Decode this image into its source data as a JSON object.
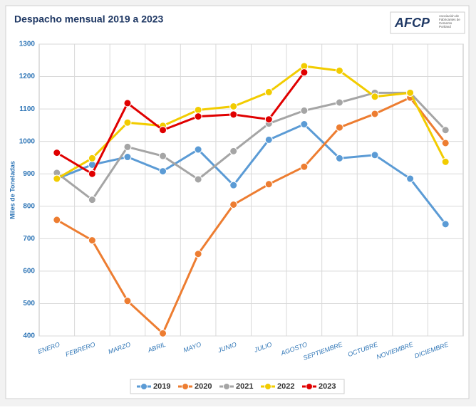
{
  "chart_data": {
    "type": "line",
    "title": "Despacho mensual 2019 a 2023",
    "logo": "AFCP",
    "logo_subtitle": "Asociación de Fabricantes de Cemento Portland",
    "y_label": "Miles de Toneladas",
    "categories": [
      "ENERO",
      "FEBRERO",
      "MARZO",
      "ABRIL",
      "MAYO",
      "JUNIO",
      "JULIO",
      "AGOSTO",
      "SEPTIEMBRE",
      "OCTUBRE",
      "NOVIEMBRE",
      "DICIEMBRE"
    ],
    "series": [
      {
        "name": "2019",
        "color": "#5b9bd5",
        "values": [
          885,
          928,
          952,
          908,
          975,
          865,
          1005,
          1053,
          948,
          958,
          885,
          745
        ]
      },
      {
        "name": "2020",
        "color": "#ed7d31",
        "values": [
          758,
          695,
          508,
          408,
          653,
          805,
          868,
          922,
          1043,
          1085,
          1135,
          995
        ]
      },
      {
        "name": "2021",
        "color": "#a5a5a5",
        "values": [
          903,
          820,
          983,
          955,
          883,
          970,
          1055,
          1095,
          1120,
          1150,
          1150,
          1035
        ]
      },
      {
        "name": "2022",
        "color": "#f2cc00",
        "values": [
          885,
          948,
          1058,
          1048,
          1097,
          1108,
          1152,
          1232,
          1218,
          1138,
          1150,
          937
        ]
      },
      {
        "name": "2023",
        "color": "#e00000",
        "values": [
          965,
          900,
          1118,
          1035,
          1077,
          1083,
          1068,
          1213,
          null,
          null,
          null,
          null
        ]
      }
    ],
    "ylim": [
      400,
      1300
    ],
    "yticks": [
      400,
      500,
      600,
      700,
      800,
      900,
      1000,
      1100,
      1200,
      1300
    ],
    "grid": true,
    "legend": "bottom"
  }
}
